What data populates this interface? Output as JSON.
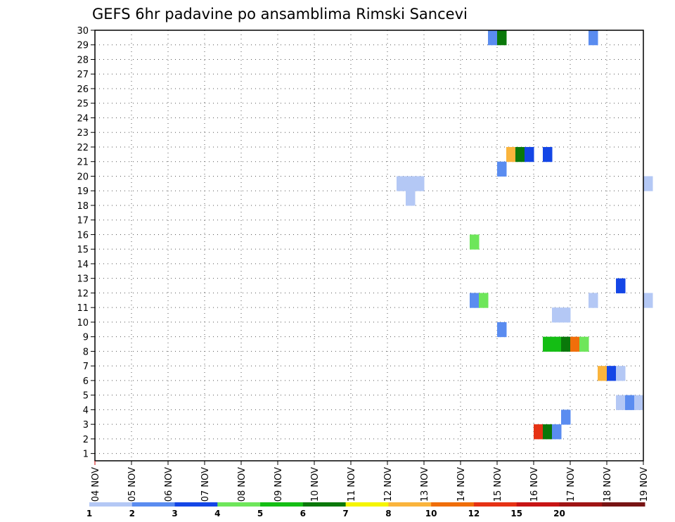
{
  "chart_data": {
    "type": "heatmap",
    "title": "GEFS 6hr padavine po ansamblima Rimski Sancevi",
    "xlabel": "",
    "ylabel": "",
    "x_ticks": [
      "04 NOV",
      "05 NOV",
      "06 NOV",
      "07 NOV",
      "08 NOV",
      "09 NOV",
      "10 NOV",
      "11 NOV",
      "12 NOV",
      "13 NOV",
      "14 NOV",
      "15 NOV",
      "16 NOV",
      "17 NOV",
      "18 NOV",
      "19 NOV"
    ],
    "y_ticks": [
      1,
      2,
      3,
      4,
      5,
      6,
      7,
      8,
      9,
      10,
      11,
      12,
      13,
      14,
      15,
      16,
      17,
      18,
      19,
      20,
      21,
      22,
      23,
      24,
      25,
      26,
      27,
      28,
      29,
      30
    ],
    "xlim": [
      0,
      15
    ],
    "ylim": [
      0.5,
      30
    ],
    "grid": true,
    "legend": {
      "position": "bottom",
      "labels": [
        "1",
        "2",
        "3",
        "4",
        "5",
        "6",
        "7",
        "8",
        "10",
        "12",
        "15",
        "20"
      ],
      "colors": [
        "#b4c8f5",
        "#5a8cf0",
        "#1446e6",
        "#6ee65a",
        "#14be14",
        "#0a780a",
        "#f5f500",
        "#fab43c",
        "#f06e0a",
        "#e63214",
        "#c81414",
        "#a01414",
        "#781414"
      ]
    },
    "cells": [
      {
        "day": 10.75,
        "member": 29.5,
        "color": "#5a8cf0"
      },
      {
        "day": 11.0,
        "member": 29.5,
        "color": "#0a780a"
      },
      {
        "day": 13.5,
        "member": 29.5,
        "color": "#5a8cf0"
      },
      {
        "day": 11.25,
        "member": 21.5,
        "color": "#fab43c"
      },
      {
        "day": 11.5,
        "member": 21.5,
        "color": "#0a780a"
      },
      {
        "day": 11.75,
        "member": 21.5,
        "color": "#1446e6"
      },
      {
        "day": 12.25,
        "member": 21.5,
        "color": "#1446e6"
      },
      {
        "day": 11.0,
        "member": 20.5,
        "color": "#5a8cf0"
      },
      {
        "day": 8.25,
        "member": 19.5,
        "color": "#b4c8f5"
      },
      {
        "day": 8.5,
        "member": 19.5,
        "color": "#b4c8f5"
      },
      {
        "day": 8.75,
        "member": 19.5,
        "color": "#b4c8f5"
      },
      {
        "day": 15.0,
        "member": 19.5,
        "color": "#b4c8f5"
      },
      {
        "day": 8.5,
        "member": 18.5,
        "color": "#b4c8f5"
      },
      {
        "day": 10.25,
        "member": 15.5,
        "color": "#6ee65a"
      },
      {
        "day": 14.25,
        "member": 12.5,
        "color": "#1446e6"
      },
      {
        "day": 10.25,
        "member": 11.5,
        "color": "#5a8cf0"
      },
      {
        "day": 10.5,
        "member": 11.5,
        "color": "#6ee65a"
      },
      {
        "day": 13.5,
        "member": 11.5,
        "color": "#b4c8f5"
      },
      {
        "day": 15.0,
        "member": 11.5,
        "color": "#b4c8f5"
      },
      {
        "day": 12.5,
        "member": 10.5,
        "color": "#b4c8f5"
      },
      {
        "day": 12.75,
        "member": 10.5,
        "color": "#b4c8f5"
      },
      {
        "day": 11.0,
        "member": 9.5,
        "color": "#5a8cf0"
      },
      {
        "day": 12.25,
        "member": 8.5,
        "color": "#14be14"
      },
      {
        "day": 12.5,
        "member": 8.5,
        "color": "#14be14"
      },
      {
        "day": 12.75,
        "member": 8.5,
        "color": "#0a780a"
      },
      {
        "day": 13.0,
        "member": 8.5,
        "color": "#f06e0a"
      },
      {
        "day": 13.25,
        "member": 8.5,
        "color": "#6ee65a"
      },
      {
        "day": 13.75,
        "member": 6.5,
        "color": "#fab43c"
      },
      {
        "day": 14.0,
        "member": 6.5,
        "color": "#1446e6"
      },
      {
        "day": 14.25,
        "member": 6.5,
        "color": "#b4c8f5"
      },
      {
        "day": 14.25,
        "member": 4.5,
        "color": "#b4c8f5"
      },
      {
        "day": 14.5,
        "member": 4.5,
        "color": "#5a8cf0"
      },
      {
        "day": 14.75,
        "member": 4.5,
        "color": "#b4c8f5"
      },
      {
        "day": 12.75,
        "member": 3.5,
        "color": "#5a8cf0"
      },
      {
        "day": 12.0,
        "member": 2.5,
        "color": "#e63214"
      },
      {
        "day": 12.25,
        "member": 2.5,
        "color": "#0a780a"
      },
      {
        "day": 12.5,
        "member": 2.5,
        "color": "#5a8cf0"
      }
    ]
  }
}
